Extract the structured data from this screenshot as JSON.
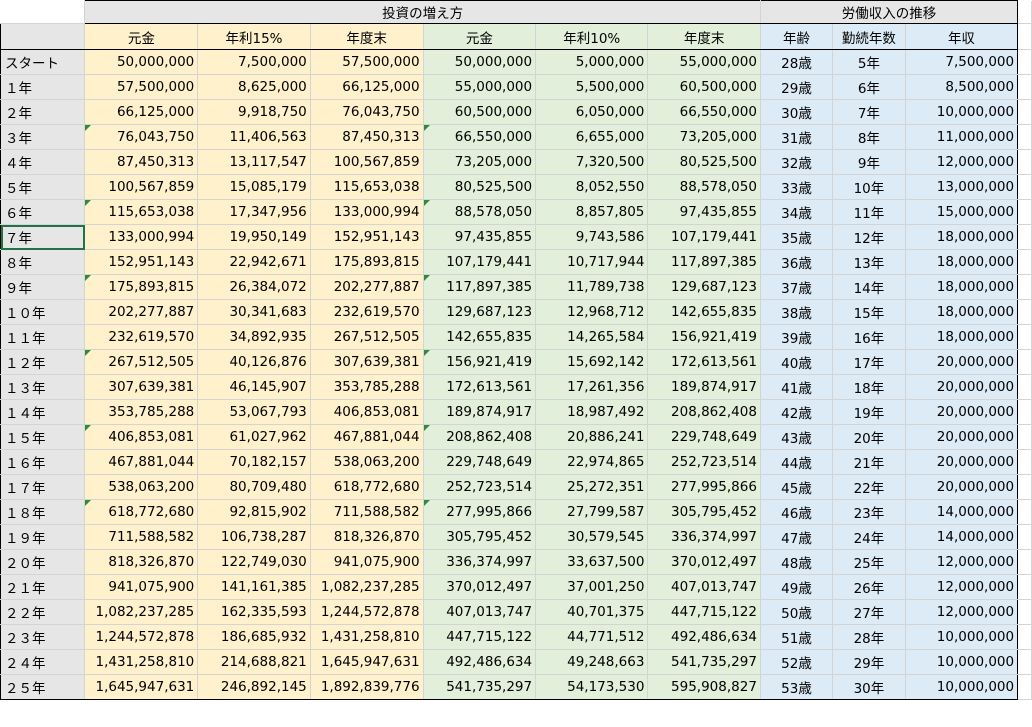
{
  "headers": {
    "investment_group": "投資の増え方",
    "labor_group": "労働収入の推移",
    "columns": [
      "元金",
      "年利15%",
      "年度末",
      "元金",
      "年利10%",
      "年度末",
      "年齢",
      "勤続年数",
      "年収"
    ]
  },
  "rows": [
    {
      "label": "スタート",
      "c": [
        "50,000,000",
        "7,500,000",
        "57,500,000",
        "50,000,000",
        "5,000,000",
        "55,000,000",
        "28歳",
        "5年",
        "7,500,000"
      ]
    },
    {
      "label": "１年",
      "c": [
        "57,500,000",
        "8,625,000",
        "66,125,000",
        "55,000,000",
        "5,500,000",
        "60,500,000",
        "29歳",
        "6年",
        "8,500,000"
      ]
    },
    {
      "label": "２年",
      "c": [
        "66,125,000",
        "9,918,750",
        "76,043,750",
        "60,500,000",
        "6,050,000",
        "66,550,000",
        "30歳",
        "7年",
        "10,000,000"
      ]
    },
    {
      "label": "３年",
      "c": [
        "76,043,750",
        "11,406,563",
        "87,450,313",
        "66,550,000",
        "6,655,000",
        "73,205,000",
        "31歳",
        "8年",
        "11,000,000"
      ]
    },
    {
      "label": "４年",
      "c": [
        "87,450,313",
        "13,117,547",
        "100,567,859",
        "73,205,000",
        "7,320,500",
        "80,525,500",
        "32歳",
        "9年",
        "12,000,000"
      ]
    },
    {
      "label": "５年",
      "c": [
        "100,567,859",
        "15,085,179",
        "115,653,038",
        "80,525,500",
        "8,052,550",
        "88,578,050",
        "33歳",
        "10年",
        "13,000,000"
      ]
    },
    {
      "label": "６年",
      "c": [
        "115,653,038",
        "17,347,956",
        "133,000,994",
        "88,578,050",
        "8,857,805",
        "97,435,855",
        "34歳",
        "11年",
        "15,000,000"
      ]
    },
    {
      "label": "７年",
      "c": [
        "133,000,994",
        "19,950,149",
        "152,951,143",
        "97,435,855",
        "9,743,586",
        "107,179,441",
        "35歳",
        "12年",
        "18,000,000"
      ]
    },
    {
      "label": "８年",
      "c": [
        "152,951,143",
        "22,942,671",
        "175,893,815",
        "107,179,441",
        "10,717,944",
        "117,897,385",
        "36歳",
        "13年",
        "18,000,000"
      ]
    },
    {
      "label": "９年",
      "c": [
        "175,893,815",
        "26,384,072",
        "202,277,887",
        "117,897,385",
        "11,789,738",
        "129,687,123",
        "37歳",
        "14年",
        "18,000,000"
      ]
    },
    {
      "label": "１０年",
      "c": [
        "202,277,887",
        "30,341,683",
        "232,619,570",
        "129,687,123",
        "12,968,712",
        "142,655,835",
        "38歳",
        "15年",
        "18,000,000"
      ]
    },
    {
      "label": "１１年",
      "c": [
        "232,619,570",
        "34,892,935",
        "267,512,505",
        "142,655,835",
        "14,265,584",
        "156,921,419",
        "39歳",
        "16年",
        "18,000,000"
      ]
    },
    {
      "label": "１２年",
      "c": [
        "267,512,505",
        "40,126,876",
        "307,639,381",
        "156,921,419",
        "15,692,142",
        "172,613,561",
        "40歳",
        "17年",
        "20,000,000"
      ]
    },
    {
      "label": "１３年",
      "c": [
        "307,639,381",
        "46,145,907",
        "353,785,288",
        "172,613,561",
        "17,261,356",
        "189,874,917",
        "41歳",
        "18年",
        "20,000,000"
      ]
    },
    {
      "label": "１４年",
      "c": [
        "353,785,288",
        "53,067,793",
        "406,853,081",
        "189,874,917",
        "18,987,492",
        "208,862,408",
        "42歳",
        "19年",
        "20,000,000"
      ]
    },
    {
      "label": "１５年",
      "c": [
        "406,853,081",
        "61,027,962",
        "467,881,044",
        "208,862,408",
        "20,886,241",
        "229,748,649",
        "43歳",
        "20年",
        "20,000,000"
      ]
    },
    {
      "label": "１６年",
      "c": [
        "467,881,044",
        "70,182,157",
        "538,063,200",
        "229,748,649",
        "22,974,865",
        "252,723,514",
        "44歳",
        "21年",
        "20,000,000"
      ]
    },
    {
      "label": "１７年",
      "c": [
        "538,063,200",
        "80,709,480",
        "618,772,680",
        "252,723,514",
        "25,272,351",
        "277,995,866",
        "45歳",
        "22年",
        "20,000,000"
      ]
    },
    {
      "label": "１８年",
      "c": [
        "618,772,680",
        "92,815,902",
        "711,588,582",
        "277,995,866",
        "27,799,587",
        "305,795,452",
        "46歳",
        "23年",
        "14,000,000"
      ]
    },
    {
      "label": "１９年",
      "c": [
        "711,588,582",
        "106,738,287",
        "818,326,870",
        "305,795,452",
        "30,579,545",
        "336,374,997",
        "47歳",
        "24年",
        "14,000,000"
      ]
    },
    {
      "label": "２０年",
      "c": [
        "818,326,870",
        "122,749,030",
        "941,075,900",
        "336,374,997",
        "33,637,500",
        "370,012,497",
        "48歳",
        "25年",
        "12,000,000"
      ]
    },
    {
      "label": "２１年",
      "c": [
        "941,075,900",
        "141,161,385",
        "1,082,237,285",
        "370,012,497",
        "37,001,250",
        "407,013,747",
        "49歳",
        "26年",
        "12,000,000"
      ]
    },
    {
      "label": "２２年",
      "c": [
        "1,082,237,285",
        "162,335,593",
        "1,244,572,878",
        "407,013,747",
        "40,701,375",
        "447,715,122",
        "50歳",
        "27年",
        "12,000,000"
      ]
    },
    {
      "label": "２３年",
      "c": [
        "1,244,572,878",
        "186,685,932",
        "1,431,258,810",
        "447,715,122",
        "44,771,512",
        "492,486,634",
        "51歳",
        "28年",
        "10,000,000"
      ]
    },
    {
      "label": "２４年",
      "c": [
        "1,431,258,810",
        "214,688,821",
        "1,645,947,631",
        "492,486,634",
        "49,248,663",
        "541,735,297",
        "52歳",
        "29年",
        "10,000,000"
      ]
    },
    {
      "label": "２５年",
      "c": [
        "1,645,947,631",
        "246,892,145",
        "1,892,839,776",
        "541,735,297",
        "54,173,530",
        "595,908,827",
        "53歳",
        "30年",
        "10,000,000"
      ]
    }
  ],
  "colors": {
    "investment_fill": "#fff1cc",
    "compare_fill": "#e2efda",
    "labor_fill": "#ddebf7",
    "header_fill": "#e6e6e6",
    "selection": "#217346",
    "error_marker": "#2e8b3a"
  }
}
